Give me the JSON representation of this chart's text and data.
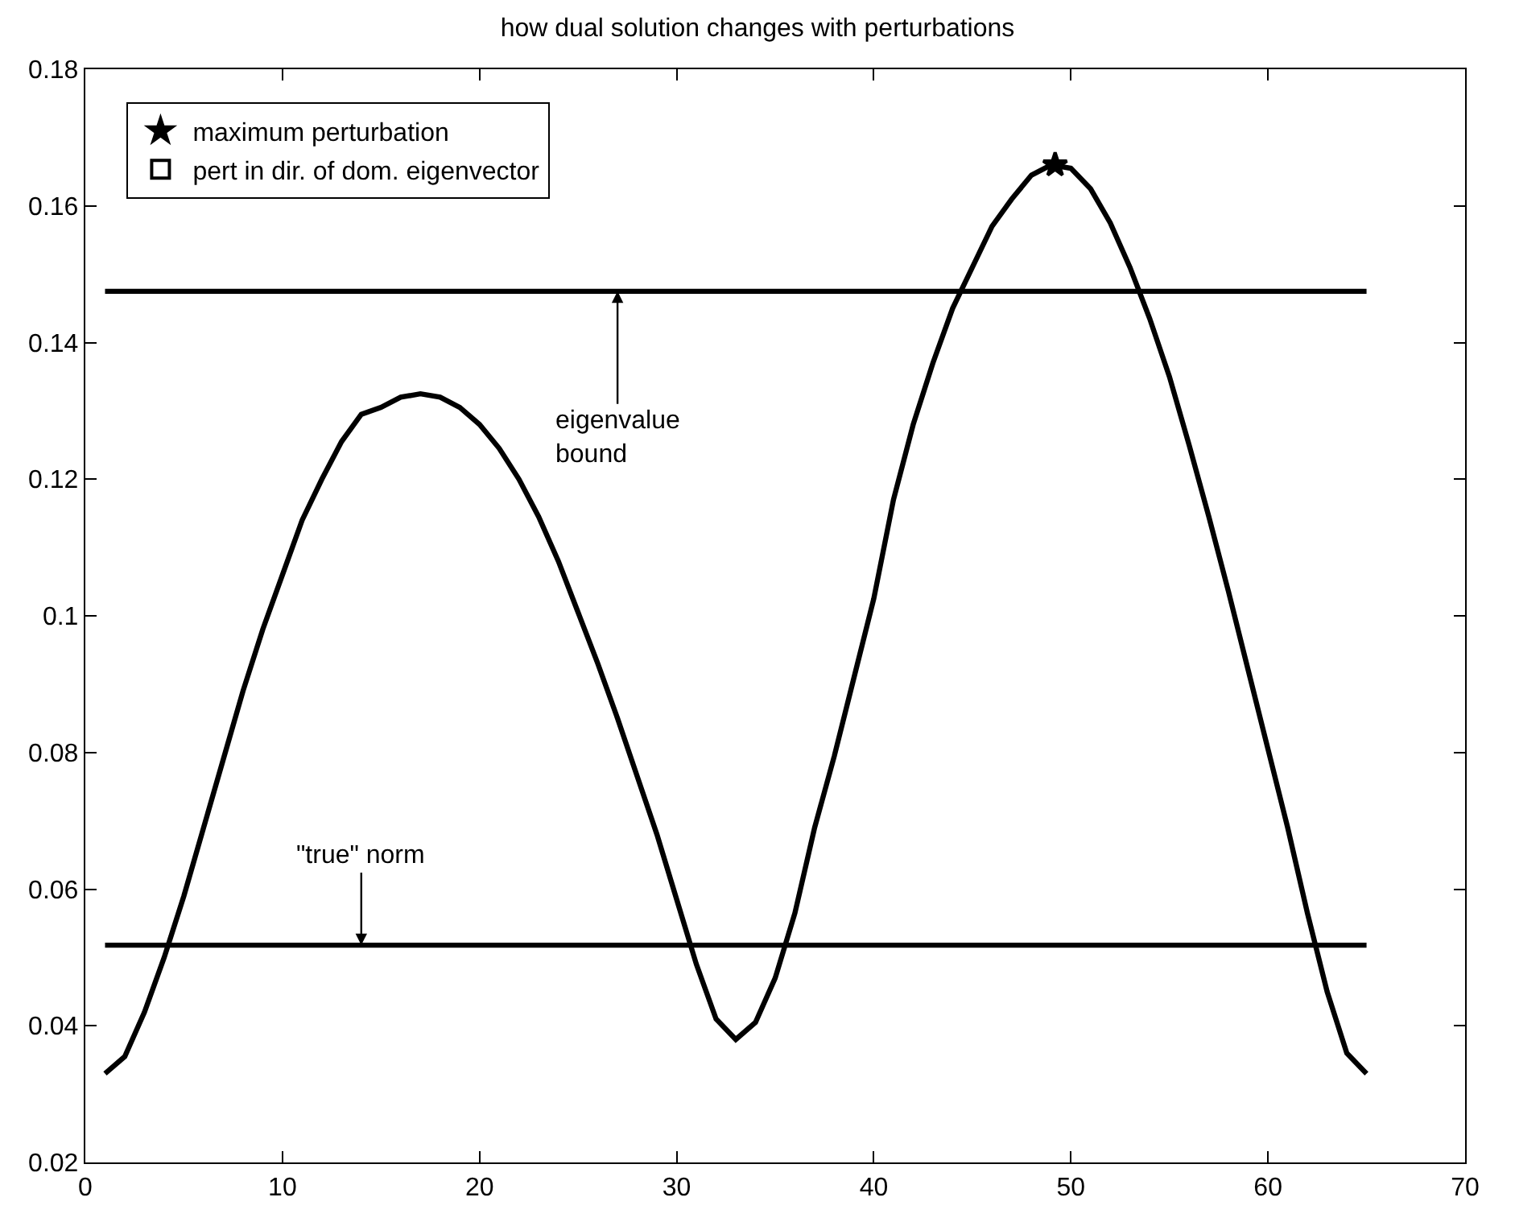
{
  "chart_data": {
    "type": "line",
    "title": "how dual solution changes with perturbations",
    "x": [
      1,
      2,
      3,
      4,
      5,
      6,
      7,
      8,
      9,
      10,
      11,
      12,
      13,
      14,
      15,
      16,
      17,
      18,
      19,
      20,
      21,
      22,
      23,
      24,
      25,
      26,
      27,
      28,
      29,
      30,
      31,
      32,
      33,
      34,
      35,
      36,
      37,
      38,
      39,
      40,
      41,
      42,
      43,
      44,
      45,
      46,
      47,
      48,
      49,
      50,
      51,
      52,
      53,
      54,
      55,
      56,
      57,
      58,
      59,
      60,
      61,
      62,
      63,
      64,
      65
    ],
    "series": [
      {
        "color": "#000000",
        "values": [
          0.033,
          0.0355,
          0.042,
          0.05,
          0.059,
          0.069,
          0.079,
          0.089,
          0.098,
          0.106,
          0.114,
          0.12,
          0.1255,
          0.1295,
          0.1305,
          0.132,
          0.1325,
          0.132,
          0.1305,
          0.128,
          0.1245,
          0.12,
          0.1145,
          0.108,
          0.1005,
          0.093,
          0.085,
          0.0765,
          0.068,
          0.0585,
          0.049,
          0.041,
          0.038,
          0.0405,
          0.047,
          0.0565,
          0.069,
          0.0795,
          0.091,
          0.1025,
          0.117,
          0.128,
          0.137,
          0.145,
          0.151,
          0.157,
          0.161,
          0.1645,
          0.166,
          0.1655,
          0.1625,
          0.1575,
          0.151,
          0.1435,
          0.135,
          0.125,
          0.1145,
          0.1035,
          0.092,
          0.0805,
          0.069,
          0.0565,
          0.045,
          0.036,
          0.033
        ]
      },
      {
        "type": "scatter",
        "name": "maximum perturbation",
        "color": "#000000",
        "marker": "star",
        "x": [
          49.2
        ],
        "values": [
          0.166
        ]
      },
      {
        "type": "scatter",
        "name": "pert in dir. of dom. eigenvector",
        "color": "#000000",
        "marker": "square",
        "x": [
          null
        ],
        "values": [
          null
        ]
      }
    ],
    "ref_lines": [
      {
        "axis": "y",
        "value": 0.1475,
        "color": "#000000"
      },
      {
        "axis": "y",
        "value": 0.0518,
        "color": "#000000"
      }
    ],
    "annotations": [
      {
        "text": "eigenvalue\nbound",
        "x": 27,
        "y": 0.1475
      },
      {
        "text": "\"true\" norm",
        "x": 14,
        "y": 0.0518
      }
    ],
    "xlim": [
      0,
      70
    ],
    "xticks": [
      0,
      10,
      20,
      30,
      40,
      50,
      60,
      70
    ],
    "ylim": [
      0.02,
      0.18
    ],
    "yticks": [
      0.02,
      0.04,
      0.06,
      0.08,
      0.1,
      0.12,
      0.14,
      0.16,
      0.18
    ],
    "legend": "top left",
    "marker": "none",
    "line_style": "solid"
  }
}
